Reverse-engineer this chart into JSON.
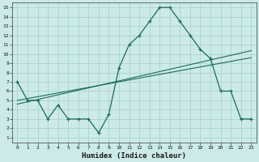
{
  "xlabel": "Humidex (Indice chaleur)",
  "background_color": "#cceae7",
  "line_color": "#1a6b5e",
  "grid_color": "#aad4cf",
  "x_data": [
    0,
    1,
    2,
    3,
    4,
    5,
    6,
    7,
    8,
    9,
    10,
    11,
    12,
    13,
    14,
    15,
    16,
    17,
    18,
    19,
    20,
    21,
    22,
    23
  ],
  "y_main": [
    7,
    5,
    5,
    3,
    4.5,
    3,
    3,
    3,
    1.5,
    3.5,
    8.5,
    11,
    12,
    13.5,
    15,
    15,
    13.5,
    12,
    10.5,
    9.5,
    6,
    6,
    3,
    3
  ],
  "y_reg1": [
    5.0,
    5.2,
    5.4,
    5.6,
    5.8,
    6.0,
    6.2,
    6.4,
    6.6,
    6.8,
    7.0,
    7.2,
    7.4,
    7.6,
    7.8,
    8.0,
    8.2,
    8.4,
    8.6,
    8.8,
    9.0,
    9.2,
    9.4,
    9.6
  ],
  "y_reg2": [
    4.6,
    4.85,
    5.1,
    5.35,
    5.6,
    5.85,
    6.1,
    6.35,
    6.6,
    6.85,
    7.1,
    7.35,
    7.6,
    7.85,
    8.1,
    8.35,
    8.6,
    8.85,
    9.1,
    9.35,
    9.6,
    9.85,
    10.1,
    10.35
  ],
  "xlim": [
    -0.5,
    23.5
  ],
  "ylim": [
    0.5,
    15.5
  ],
  "xticks": [
    0,
    1,
    2,
    3,
    4,
    5,
    6,
    7,
    8,
    9,
    10,
    11,
    12,
    13,
    14,
    15,
    16,
    17,
    18,
    19,
    20,
    21,
    22,
    23
  ],
  "yticks": [
    1,
    2,
    3,
    4,
    5,
    6,
    7,
    8,
    9,
    10,
    11,
    12,
    13,
    14,
    15
  ]
}
